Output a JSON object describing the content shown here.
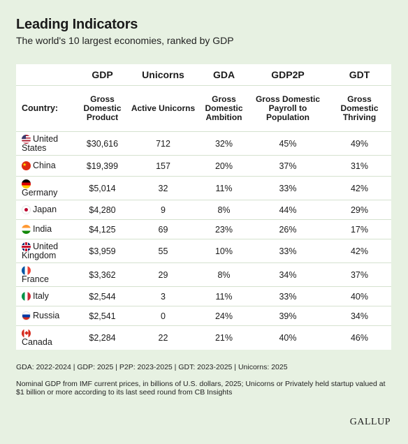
{
  "title": "Leading Indicators",
  "subtitle": "The world's 10 largest economies, ranked by GDP",
  "columns": [
    {
      "abbr": "",
      "full": "Country:"
    },
    {
      "abbr": "GDP",
      "full": "Gross Domestic Product"
    },
    {
      "abbr": "Unicorns",
      "full": "Active Unicorns"
    },
    {
      "abbr": "GDA",
      "full": "Gross Domestic Ambition"
    },
    {
      "abbr": "GDP2P",
      "full": "Gross Domestic Payroll to Population"
    },
    {
      "abbr": "GDT",
      "full": "Gross Domestic Thriving"
    }
  ],
  "rows": [
    {
      "country": "United States",
      "line1": "United",
      "line2": "States",
      "flag": "us-flag",
      "gdp": "$30,616",
      "unicorns": "712",
      "gda": "32%",
      "gdp2p": "45%",
      "gdt": "49%"
    },
    {
      "country": "China",
      "line1": "China",
      "line2": "",
      "flag": "china-flag",
      "gdp": "$19,399",
      "unicorns": "157",
      "gda": "20%",
      "gdp2p": "37%",
      "gdt": "31%"
    },
    {
      "country": "Germany",
      "line1": "",
      "line2": "Germany",
      "flag": "germany-flag",
      "gdp": "$5,014",
      "unicorns": "32",
      "gda": "11%",
      "gdp2p": "33%",
      "gdt": "42%"
    },
    {
      "country": "Japan",
      "line1": "Japan",
      "line2": "",
      "flag": "japan-flag",
      "gdp": "$4,280",
      "unicorns": "9",
      "gda": "8%",
      "gdp2p": "44%",
      "gdt": "29%"
    },
    {
      "country": "India",
      "line1": "India",
      "line2": "",
      "flag": "india-flag",
      "gdp": "$4,125",
      "unicorns": "69",
      "gda": "23%",
      "gdp2p": "26%",
      "gdt": "17%"
    },
    {
      "country": "United Kingdom",
      "line1": "United",
      "line2": "Kingdom",
      "flag": "uk-flag",
      "gdp": "$3,959",
      "unicorns": "55",
      "gda": "10%",
      "gdp2p": "33%",
      "gdt": "42%"
    },
    {
      "country": "France",
      "line1": "",
      "line2": "France",
      "flag": "france-flag",
      "gdp": "$3,362",
      "unicorns": "29",
      "gda": "8%",
      "gdp2p": "34%",
      "gdt": "37%"
    },
    {
      "country": "Italy",
      "line1": "Italy",
      "line2": "",
      "flag": "italy-flag",
      "gdp": "$2,544",
      "unicorns": "3",
      "gda": "11%",
      "gdp2p": "33%",
      "gdt": "40%"
    },
    {
      "country": "Russia",
      "line1": "Russia",
      "line2": "",
      "flag": "russia-flag",
      "gdp": "$2,541",
      "unicorns": "0",
      "gda": "24%",
      "gdp2p": "39%",
      "gdt": "34%"
    },
    {
      "country": "Canada",
      "line1": "",
      "line2": "Canada",
      "flag": "canada-flag",
      "gdp": "$2,284",
      "unicorns": "22",
      "gda": "21%",
      "gdp2p": "40%",
      "gdt": "46%"
    }
  ],
  "notes": {
    "periods": "GDA: 2022-2024 | GDP: 2025 | P2P: 2023-2025 | GDT: 2023-2025 | Unicorns: 2025",
    "source": "Nominal GDP from IMF current prices, in billions of U.S. dollars, 2025; Unicorns or Privately held startup valued at $1 billion or more according to its last seed round from CB Insights"
  },
  "brand": "GALLUP",
  "colors": {
    "background": "#e7f1e2",
    "table": "#ffffff",
    "row_divider": "#d5e2cf"
  },
  "chart_data": {
    "type": "table",
    "title": "Leading Indicators",
    "subtitle": "The world's 10 largest economies, ranked by GDP",
    "columns": [
      "Country:",
      "GDP",
      "Unicorns",
      "GDA",
      "GDP2P",
      "GDT"
    ],
    "categories": [
      "United States",
      "China",
      "Germany",
      "Japan",
      "India",
      "United Kingdom",
      "France",
      "Italy",
      "Russia",
      "Canada"
    ],
    "series": [
      {
        "name": "GDP",
        "values": [
          30616,
          19399,
          5014,
          4280,
          4125,
          3959,
          3362,
          2544,
          2541,
          2284
        ]
      },
      {
        "name": "Unicorns",
        "values": [
          712,
          157,
          32,
          9,
          69,
          55,
          29,
          3,
          0,
          22
        ]
      },
      {
        "name": "GDA",
        "values": [
          32,
          20,
          11,
          8,
          23,
          10,
          8,
          11,
          24,
          21
        ]
      },
      {
        "name": "GDP2P",
        "values": [
          45,
          37,
          33,
          44,
          26,
          33,
          34,
          33,
          39,
          40
        ]
      },
      {
        "name": "GDT",
        "values": [
          49,
          31,
          42,
          29,
          17,
          42,
          37,
          40,
          34,
          46
        ]
      }
    ]
  }
}
